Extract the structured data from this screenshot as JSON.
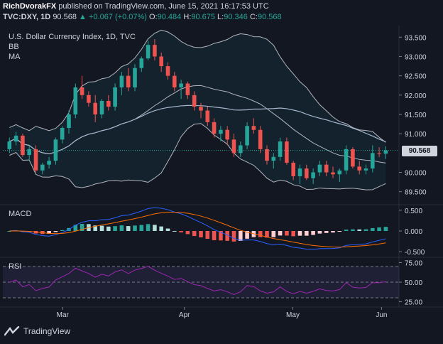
{
  "header": {
    "author": "RichDvorakFX",
    "published": "published on TradingView.com, June 15, 2021 16:17:53 UTC",
    "symbol": "TVC:DXY, 1D",
    "last": "90.568",
    "change": "▲ +0.067 (+0.07%)",
    "ohlc": {
      "o_label": "O:",
      "o": "90.484",
      "h_label": "H:",
      "h": "90.675",
      "l_label": "L:",
      "l": "90.346",
      "c_label": "C:",
      "c": "90.568"
    }
  },
  "main_pane": {
    "title": "U.S. Dollar Currency Index, 1D, TVC",
    "indicator1": "BB",
    "indicator2": "MA",
    "price_tag": "90.568"
  },
  "macd_pane": {
    "title": "MACD"
  },
  "rsi_pane": {
    "title": "RSI"
  },
  "brand": {
    "name": "TradingView"
  },
  "colors": {
    "bg": "#131722",
    "up": "#26a69a",
    "down": "#ef5350",
    "bb": "#b2b5be",
    "ma": "#a6b7cc",
    "macd_line": "#2962ff",
    "signal_line": "#ff6d00",
    "rsi": "#9c27b0",
    "rsi_band": "#7e57c2"
  },
  "chart_data": [
    {
      "type": "candlestick",
      "title": "U.S. Dollar Currency Index, 1D, TVC",
      "x_labels": [
        "Mar",
        "Apr",
        "May",
        "Jun"
      ],
      "yticks": [
        "93.500",
        "93.000",
        "92.500",
        "92.000",
        "91.500",
        "91.000",
        "90.000",
        "89.500"
      ],
      "ylim": [
        89.2,
        93.8
      ],
      "candles": [
        [
          90.6,
          90.9,
          90.5,
          90.8
        ],
        [
          90.8,
          91.05,
          90.7,
          90.95
        ],
        [
          90.95,
          91.0,
          90.4,
          90.45
        ],
        [
          90.45,
          90.7,
          90.3,
          90.6
        ],
        [
          90.6,
          90.7,
          90.0,
          90.05
        ],
        [
          90.05,
          90.25,
          89.95,
          90.2
        ],
        [
          90.2,
          90.4,
          90.1,
          90.3
        ],
        [
          90.3,
          90.9,
          90.2,
          90.85
        ],
        [
          90.85,
          91.2,
          90.75,
          91.15
        ],
        [
          91.15,
          91.6,
          91.0,
          91.5
        ],
        [
          91.5,
          92.3,
          91.4,
          92.2
        ],
        [
          92.2,
          92.5,
          91.9,
          92.0
        ],
        [
          92.0,
          92.1,
          91.7,
          91.8
        ],
        [
          91.8,
          92.0,
          91.3,
          91.5
        ],
        [
          91.5,
          91.9,
          91.4,
          91.85
        ],
        [
          91.85,
          92.0,
          91.6,
          91.7
        ],
        [
          91.7,
          92.3,
          91.6,
          92.2
        ],
        [
          92.2,
          92.6,
          92.0,
          92.5
        ],
        [
          92.5,
          92.7,
          92.1,
          92.2
        ],
        [
          92.2,
          92.8,
          92.1,
          92.7
        ],
        [
          92.7,
          93.0,
          92.6,
          92.95
        ],
        [
          92.95,
          93.4,
          92.9,
          93.3
        ],
        [
          93.3,
          93.45,
          92.9,
          93.0
        ],
        [
          93.0,
          93.1,
          92.6,
          92.75
        ],
        [
          92.75,
          92.85,
          92.4,
          92.5
        ],
        [
          92.5,
          92.6,
          92.1,
          92.2
        ],
        [
          92.2,
          92.4,
          91.9,
          92.3
        ],
        [
          92.3,
          92.35,
          91.9,
          92.0
        ],
        [
          92.0,
          92.1,
          91.6,
          91.7
        ],
        [
          91.7,
          91.8,
          91.4,
          91.6
        ],
        [
          91.6,
          91.7,
          91.2,
          91.3
        ],
        [
          91.3,
          91.4,
          90.9,
          91.0
        ],
        [
          91.0,
          91.2,
          90.8,
          91.1
        ],
        [
          91.1,
          91.2,
          90.7,
          90.85
        ],
        [
          90.85,
          91.0,
          90.4,
          90.5
        ],
        [
          90.5,
          90.8,
          90.4,
          90.7
        ],
        [
          90.7,
          91.3,
          90.6,
          91.2
        ],
        [
          91.2,
          91.4,
          91.0,
          91.1
        ],
        [
          91.1,
          91.2,
          90.5,
          90.6
        ],
        [
          90.6,
          90.7,
          90.2,
          90.3
        ],
        [
          90.3,
          90.5,
          90.1,
          90.4
        ],
        [
          90.4,
          90.9,
          90.3,
          90.8
        ],
        [
          90.8,
          90.9,
          90.2,
          90.25
        ],
        [
          90.25,
          90.3,
          89.8,
          89.9
        ],
        [
          89.9,
          90.2,
          89.7,
          90.1
        ],
        [
          90.1,
          90.2,
          89.8,
          89.85
        ],
        [
          89.85,
          90.1,
          89.7,
          90.0
        ],
        [
          90.0,
          90.3,
          89.9,
          90.2
        ],
        [
          90.2,
          90.3,
          89.9,
          90.0
        ],
        [
          90.0,
          90.15,
          89.85,
          89.95
        ],
        [
          89.95,
          90.1,
          89.75,
          90.05
        ],
        [
          90.05,
          90.7,
          89.95,
          90.6
        ],
        [
          90.6,
          90.65,
          90.1,
          90.15
        ],
        [
          90.15,
          90.3,
          89.95,
          90.05
        ],
        [
          90.05,
          90.2,
          89.95,
          90.1
        ],
        [
          90.1,
          90.7,
          90.0,
          90.5
        ],
        [
          90.5,
          90.65,
          90.4,
          90.484
        ],
        [
          90.484,
          90.675,
          90.346,
          90.568
        ]
      ]
    },
    {
      "type": "line",
      "title": "MACD",
      "yticks": [
        "0.500",
        "0.000",
        "-0.500"
      ],
      "ylim": [
        -0.6,
        0.6
      ]
    },
    {
      "type": "line",
      "title": "RSI",
      "yticks": [
        "75.00",
        "50.00",
        "25.00"
      ],
      "ylim": [
        20,
        80
      ],
      "band": [
        30,
        70
      ]
    }
  ]
}
